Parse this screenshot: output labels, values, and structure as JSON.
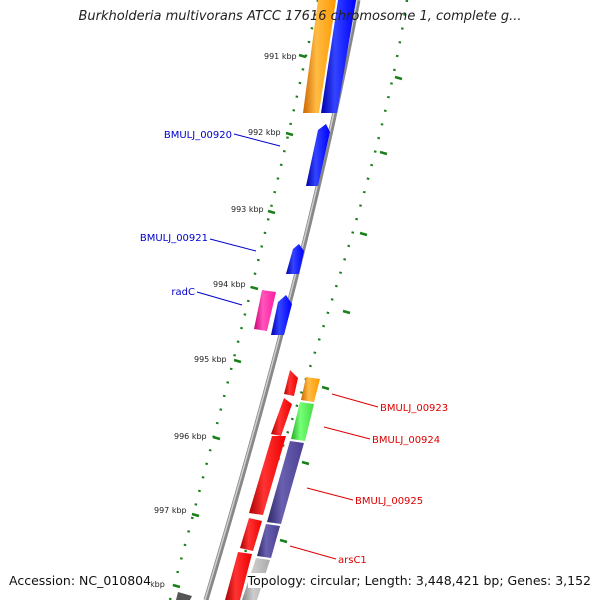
{
  "title": "Burkholderia multivorans ATCC 17616 chromosome 1, complete g...",
  "accession_text": "Accession: NC_010804",
  "topology_text": "Topology: circular; Length: 3,448,421 bp; Genes: 3,152",
  "ticks": [
    "991 kbp",
    "992 kbp",
    "993 kbp",
    "994 kbp",
    "995 kbp",
    "996 kbp",
    "997 kbp",
    "kbp"
  ],
  "gene_labels": [
    "BMULJ_00920",
    "BMULJ_00921",
    "radC",
    "BMULJ_00923",
    "BMULJ_00924",
    "BMULJ_00925",
    "arsC1"
  ],
  "colors": {
    "label_forward": "#0000cc",
    "label_reverse": "#dd0000",
    "tick_marks": "#1a7f1a",
    "orange": "#ff9900",
    "blue": "#0000ff",
    "red": "#ff0000",
    "pink": "#ff1aa0",
    "green": "#44dd44",
    "slate": "#4a3f90",
    "gray": "#999999"
  }
}
